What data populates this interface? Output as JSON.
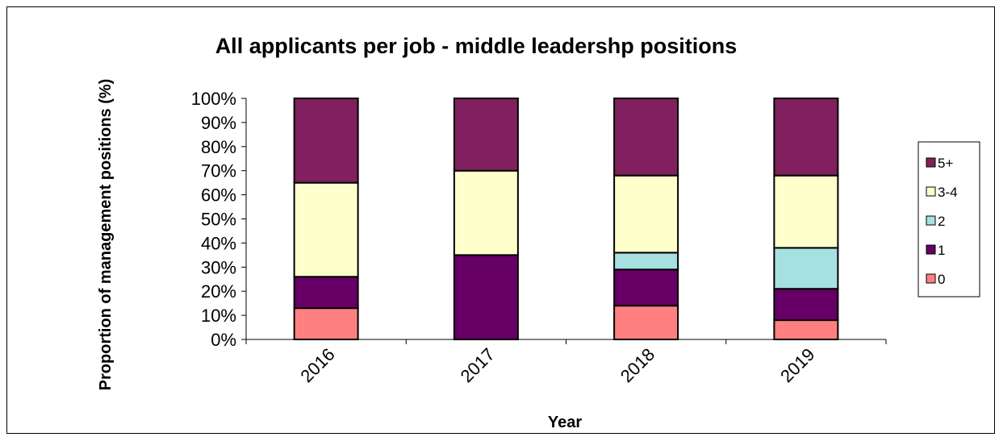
{
  "chart_data": {
    "type": "bar",
    "stacked": true,
    "percent_stacked": true,
    "title": "All applicants per job - middle leadershp positions",
    "xlabel": "Year",
    "ylabel": "Proportion of management positions (%)",
    "categories": [
      "2016",
      "2017",
      "2018",
      "2019"
    ],
    "ylim": [
      0,
      100
    ],
    "yticks": [
      "0%",
      "10%",
      "20%",
      "30%",
      "40%",
      "50%",
      "60%",
      "70%",
      "80%",
      "90%",
      "100%"
    ],
    "legend_position": "right",
    "grid": false,
    "series": [
      {
        "name": "0",
        "color": "#FF8080",
        "values": [
          13,
          0,
          14,
          8
        ]
      },
      {
        "name": "1",
        "color": "#660066",
        "values": [
          13,
          35,
          15,
          13
        ]
      },
      {
        "name": "2",
        "color": "#A6E0E0",
        "values": [
          0,
          0,
          7,
          17
        ]
      },
      {
        "name": "3-4",
        "color": "#FFFFCC",
        "values": [
          39,
          35,
          32,
          30
        ]
      },
      {
        "name": "5+",
        "color": "#80205E",
        "values": [
          35,
          30,
          32,
          32
        ]
      }
    ]
  }
}
